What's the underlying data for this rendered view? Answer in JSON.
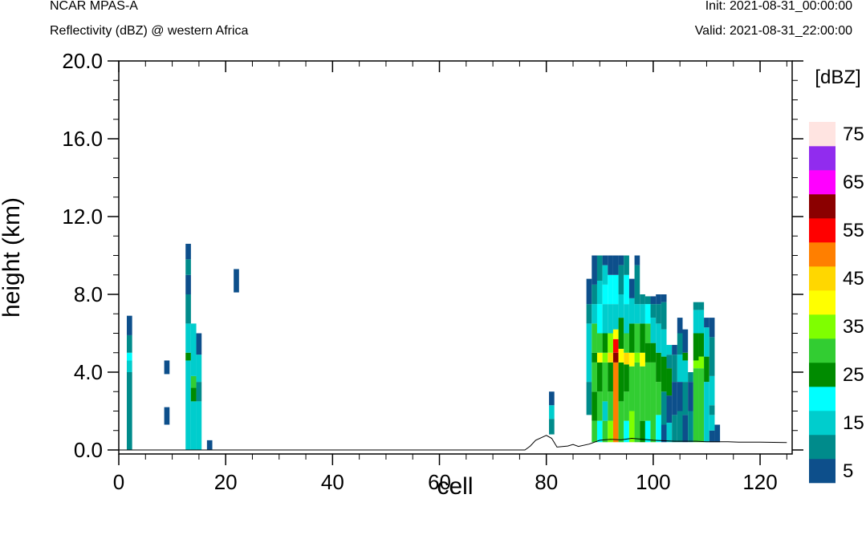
{
  "header": {
    "model": "NCAR MPAS-A",
    "field": "Reflectivity (dBZ) @ western Africa",
    "init": "Init: 2021-08-31_00:00:00",
    "valid": "Valid: 2021-08-31_22:00:00"
  },
  "chart_data": {
    "type": "heatmap",
    "xlabel": "cell",
    "ylabel": "height (km)",
    "xlim": [
      0,
      126
    ],
    "ylim": [
      0,
      20
    ],
    "xticks": [
      "0",
      "20",
      "40",
      "60",
      "80",
      "100",
      "120"
    ],
    "yticks": [
      "0.0",
      "4.0",
      "8.0",
      "12.0",
      "16.0",
      "20.0"
    ],
    "colorbar": {
      "unit": "[dBZ]",
      "levels": [
        5,
        10,
        15,
        20,
        25,
        30,
        35,
        40,
        45,
        50,
        55,
        60,
        65,
        70,
        75
      ],
      "labels": [
        "5",
        "15",
        "25",
        "35",
        "45",
        "55",
        "65",
        "75"
      ],
      "colors": [
        "#0d4f8b",
        "#008b8b",
        "#00cdcd",
        "#00ffff",
        "#008b00",
        "#32cd32",
        "#7fff00",
        "#ffff00",
        "#ffd700",
        "#ff7f00",
        "#ff0000",
        "#8b0000",
        "#ff00ff",
        "#912cee",
        "#ffe4e1"
      ]
    },
    "terrain": [
      [
        0,
        0
      ],
      [
        76,
        0
      ],
      [
        77,
        0.2
      ],
      [
        78,
        0.5
      ],
      [
        80,
        0.75
      ],
      [
        81,
        0.6
      ],
      [
        82,
        0.15
      ],
      [
        84,
        0.2
      ],
      [
        85,
        0.28
      ],
      [
        86,
        0.18
      ],
      [
        88,
        0.3
      ],
      [
        90,
        0.5
      ],
      [
        92,
        0.55
      ],
      [
        94,
        0.52
      ],
      [
        96,
        0.6
      ],
      [
        100,
        0.5
      ],
      [
        104,
        0.45
      ],
      [
        108,
        0.45
      ],
      [
        110,
        0.42
      ],
      [
        112,
        0.42
      ],
      [
        114,
        0.42
      ],
      [
        116,
        0.4
      ],
      [
        120,
        0.4
      ],
      [
        125,
        0.38
      ]
    ],
    "cells": [
      {
        "x": 2,
        "segments": [
          [
            0,
            4,
            10
          ],
          [
            4,
            4.6,
            15
          ],
          [
            4.6,
            5.0,
            20
          ],
          [
            5.0,
            5.9,
            10
          ],
          [
            5.9,
            6.9,
            5
          ]
        ]
      },
      {
        "x": 9,
        "segments": [
          [
            1.3,
            2.2,
            5
          ],
          [
            3.9,
            4.6,
            5
          ]
        ]
      },
      {
        "x": 13,
        "segments": [
          [
            0,
            4.6,
            15
          ],
          [
            4.6,
            5.0,
            25
          ],
          [
            5.0,
            6.5,
            15
          ],
          [
            6.5,
            8.0,
            10
          ],
          [
            8.0,
            9.0,
            5
          ],
          [
            9.0,
            9.8,
            10
          ],
          [
            9.8,
            10.6,
            5
          ]
        ]
      },
      {
        "x": 14,
        "segments": [
          [
            0,
            2.5,
            15
          ],
          [
            2.5,
            3.2,
            25
          ],
          [
            3.2,
            3.8,
            30
          ],
          [
            3.8,
            6.5,
            15
          ]
        ]
      },
      {
        "x": 15,
        "segments": [
          [
            0,
            2.5,
            15
          ],
          [
            2.5,
            3.5,
            10
          ],
          [
            3.5,
            4.9,
            15
          ],
          [
            4.9,
            6.0,
            5
          ]
        ]
      },
      {
        "x": 17,
        "segments": [
          [
            0,
            0.5,
            5
          ]
        ]
      },
      {
        "x": 22,
        "segments": [
          [
            8.1,
            9.3,
            5
          ]
        ]
      },
      {
        "x": 81,
        "segments": [
          [
            0.8,
            1.6,
            10
          ],
          [
            1.6,
            2.3,
            15
          ],
          [
            2.3,
            3.0,
            5
          ]
        ]
      },
      {
        "x": 88,
        "segments": [
          [
            1.8,
            3.5,
            10
          ],
          [
            3.5,
            6.5,
            15
          ],
          [
            6.5,
            7.5,
            10
          ],
          [
            7.5,
            8.8,
            5
          ]
        ]
      },
      {
        "x": 89,
        "segments": [
          [
            0.4,
            1.5,
            30
          ],
          [
            1.5,
            3.0,
            25
          ],
          [
            3.0,
            4.5,
            30
          ],
          [
            4.5,
            5.0,
            25
          ],
          [
            5.0,
            6.5,
            30
          ],
          [
            6.5,
            7.5,
            15
          ],
          [
            7.5,
            8.5,
            10
          ],
          [
            8.5,
            10.0,
            5
          ]
        ]
      },
      {
        "x": 90,
        "segments": [
          [
            0.4,
            1.5,
            20
          ],
          [
            1.5,
            3.0,
            30
          ],
          [
            3.0,
            4.5,
            25
          ],
          [
            4.5,
            5.0,
            40
          ],
          [
            5.0,
            6.0,
            30
          ],
          [
            6.0,
            7.5,
            20
          ],
          [
            7.5,
            8.7,
            15
          ],
          [
            8.7,
            10.0,
            10
          ]
        ]
      },
      {
        "x": 91,
        "segments": [
          [
            0.4,
            1.5,
            30
          ],
          [
            1.5,
            2.5,
            15
          ],
          [
            2.5,
            4.5,
            30
          ],
          [
            4.5,
            5.0,
            35
          ],
          [
            5.0,
            6.0,
            25
          ],
          [
            6.0,
            7.5,
            15
          ],
          [
            7.5,
            8.5,
            20
          ],
          [
            8.5,
            9.5,
            15
          ],
          [
            9.5,
            10.0,
            5
          ]
        ]
      },
      {
        "x": 92,
        "segments": [
          [
            0.4,
            1.5,
            35
          ],
          [
            1.5,
            3.0,
            30
          ],
          [
            3.0,
            4.5,
            25
          ],
          [
            4.5,
            5.0,
            45
          ],
          [
            5.0,
            6.0,
            35
          ],
          [
            6.0,
            7.5,
            15
          ],
          [
            7.5,
            9.0,
            20
          ],
          [
            9.0,
            10.0,
            5
          ]
        ]
      },
      {
        "x": 93,
        "segments": [
          [
            0.4,
            4.5,
            50
          ],
          [
            4.5,
            5.0,
            60
          ],
          [
            5.0,
            5.7,
            55
          ],
          [
            5.7,
            6.2,
            40
          ],
          [
            6.2,
            7.5,
            15
          ],
          [
            7.5,
            9.0,
            20
          ],
          [
            9.0,
            10.0,
            5
          ]
        ]
      },
      {
        "x": 94,
        "segments": [
          [
            0.4,
            2.5,
            30
          ],
          [
            2.5,
            4.5,
            25
          ],
          [
            4.5,
            5.2,
            40
          ],
          [
            5.2,
            6.8,
            25
          ],
          [
            6.8,
            8.0,
            15
          ],
          [
            8.0,
            9.5,
            10
          ],
          [
            9.5,
            10.0,
            5
          ]
        ]
      },
      {
        "x": 95,
        "segments": [
          [
            0.4,
            1.5,
            20
          ],
          [
            1.5,
            3.0,
            30
          ],
          [
            3.0,
            4.4,
            25
          ],
          [
            4.4,
            5.0,
            45
          ],
          [
            5.0,
            6.0,
            30
          ],
          [
            6.0,
            7.5,
            15
          ],
          [
            7.5,
            9.0,
            20
          ],
          [
            9.0,
            10.0,
            10
          ]
        ]
      },
      {
        "x": 96,
        "segments": [
          [
            0.4,
            2.0,
            35
          ],
          [
            2.0,
            4.3,
            30
          ],
          [
            4.3,
            5.0,
            40
          ],
          [
            5.0,
            6.5,
            25
          ],
          [
            6.5,
            7.8,
            15
          ],
          [
            7.8,
            8.8,
            5
          ]
        ]
      },
      {
        "x": 97,
        "segments": [
          [
            0.4,
            4.5,
            30
          ],
          [
            4.5,
            5.0,
            35
          ],
          [
            5.0,
            6.5,
            30
          ],
          [
            6.5,
            7.5,
            15
          ],
          [
            7.5,
            9.5,
            10
          ],
          [
            9.5,
            10.0,
            5
          ]
        ]
      },
      {
        "x": 98,
        "segments": [
          [
            0.4,
            1.5,
            25
          ],
          [
            1.5,
            4.3,
            30
          ],
          [
            4.3,
            5.0,
            40
          ],
          [
            5.0,
            6.5,
            25
          ],
          [
            6.5,
            7.5,
            15
          ],
          [
            7.5,
            8.0,
            10
          ]
        ]
      },
      {
        "x": 99,
        "segments": [
          [
            0.4,
            1.5,
            20
          ],
          [
            1.5,
            4.5,
            30
          ],
          [
            4.5,
            5.5,
            25
          ],
          [
            5.5,
            6.5,
            30
          ],
          [
            6.5,
            7.5,
            20
          ],
          [
            7.5,
            7.9,
            10
          ]
        ]
      },
      {
        "x": 100,
        "segments": [
          [
            0.4,
            4.5,
            30
          ],
          [
            4.5,
            5.5,
            25
          ],
          [
            5.5,
            6.8,
            15
          ],
          [
            6.8,
            7.5,
            10
          ],
          [
            7.5,
            7.9,
            5
          ]
        ]
      },
      {
        "x": 101,
        "segments": [
          [
            0.4,
            1.8,
            20
          ],
          [
            1.8,
            3.5,
            30
          ],
          [
            3.5,
            5.0,
            25
          ],
          [
            5.0,
            6.5,
            15
          ],
          [
            6.5,
            7.5,
            10
          ],
          [
            7.5,
            8.0,
            5
          ]
        ]
      },
      {
        "x": 102,
        "segments": [
          [
            0.4,
            1.3,
            5
          ],
          [
            1.3,
            3.0,
            10
          ],
          [
            3.0,
            4.8,
            25
          ],
          [
            4.8,
            6.2,
            15
          ],
          [
            6.2,
            7.6,
            10
          ],
          [
            7.6,
            8.0,
            5
          ]
        ]
      },
      {
        "x": 103,
        "segments": [
          [
            0.4,
            1.4,
            15
          ],
          [
            1.4,
            2.8,
            5
          ],
          [
            2.8,
            4.2,
            25
          ],
          [
            4.2,
            4.9,
            10
          ],
          [
            4.9,
            5.4,
            15
          ]
        ]
      },
      {
        "x": 104,
        "segments": [
          [
            0.4,
            1.8,
            10
          ],
          [
            1.8,
            3.5,
            5
          ],
          [
            3.5,
            4.9,
            10
          ],
          [
            4.9,
            5.4,
            5
          ]
        ]
      },
      {
        "x": 105,
        "segments": [
          [
            0.4,
            2.0,
            10
          ],
          [
            2.0,
            3.5,
            5
          ],
          [
            3.5,
            4.9,
            15
          ],
          [
            4.9,
            6.0,
            10
          ],
          [
            6.0,
            6.8,
            5
          ]
        ]
      },
      {
        "x": 106,
        "segments": [
          [
            0.4,
            1.8,
            5
          ],
          [
            1.8,
            3.5,
            10
          ],
          [
            3.5,
            4.6,
            15
          ],
          [
            4.6,
            5.0,
            25
          ],
          [
            5.0,
            6.2,
            5
          ]
        ]
      },
      {
        "x": 107,
        "segments": [
          [
            0.4,
            2.0,
            10
          ],
          [
            2.0,
            3.5,
            5
          ],
          [
            3.5,
            4.0,
            10
          ]
        ]
      },
      {
        "x": 108,
        "segments": [
          [
            0.4,
            4.2,
            30
          ],
          [
            4.2,
            4.6,
            35
          ],
          [
            4.6,
            6.0,
            25
          ],
          [
            6.0,
            7.2,
            15
          ],
          [
            7.2,
            7.6,
            10
          ]
        ]
      },
      {
        "x": 109,
        "segments": [
          [
            0.4,
            4.2,
            30
          ],
          [
            4.2,
            4.8,
            35
          ],
          [
            4.8,
            6.0,
            25
          ],
          [
            6.0,
            7.2,
            15
          ],
          [
            7.2,
            7.6,
            10
          ]
        ]
      },
      {
        "x": 110,
        "segments": [
          [
            0.4,
            3.5,
            15
          ],
          [
            3.5,
            4.8,
            25
          ],
          [
            4.8,
            6.3,
            15
          ],
          [
            6.3,
            6.8,
            5
          ]
        ]
      },
      {
        "x": 111,
        "segments": [
          [
            0.4,
            1.0,
            5
          ],
          [
            1.0,
            1.8,
            15
          ],
          [
            1.8,
            2.3,
            10
          ],
          [
            2.3,
            3.8,
            15
          ],
          [
            3.8,
            5.8,
            10
          ],
          [
            5.8,
            6.8,
            5
          ]
        ]
      },
      {
        "x": 112,
        "segments": [
          [
            0.4,
            1.3,
            5
          ]
        ]
      }
    ]
  }
}
